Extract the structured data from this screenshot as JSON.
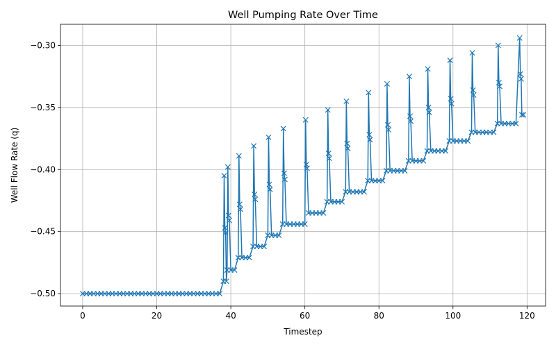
{
  "chart_data": {
    "type": "line",
    "title": "Well Pumping Rate Over Time",
    "xlabel": "Timestep",
    "ylabel": "Well Flow Rate (q)",
    "xlim": [
      -6,
      125
    ],
    "ylim": [
      -0.51,
      -0.283
    ],
    "xticks": [
      0,
      20,
      40,
      60,
      80,
      100,
      120
    ],
    "xtick_labels": [
      "0",
      "20",
      "40",
      "60",
      "80",
      "100",
      "120"
    ],
    "yticks": [
      -0.5,
      -0.45,
      -0.4,
      -0.35,
      -0.3
    ],
    "ytick_labels": [
      "−0.50",
      "−0.45",
      "−0.40",
      "−0.35",
      "−0.30"
    ],
    "grid": true,
    "marker": "x",
    "color": "#1f77b4",
    "series": [
      {
        "x": [
          0,
          1,
          2,
          3,
          4,
          5,
          6,
          7,
          8,
          9,
          10,
          11,
          12,
          13,
          14,
          15,
          16,
          17,
          18,
          19,
          20,
          21,
          22,
          23,
          24,
          25,
          26,
          27,
          28,
          29,
          30,
          31,
          32,
          33,
          34,
          35,
          36,
          37,
          38,
          38.2,
          38.4,
          38.6,
          38.8,
          39,
          39.2,
          39.4,
          39.6,
          40,
          41,
          42,
          42.2,
          42.4,
          42.6,
          43,
          44,
          45,
          46,
          46.2,
          46.4,
          46.6,
          47,
          48,
          49,
          50,
          50.2,
          50.4,
          50.6,
          51,
          52,
          53,
          54,
          54.2,
          54.4,
          54.6,
          55,
          56,
          57,
          58,
          59,
          60,
          60.2,
          60.4,
          60.6,
          61,
          62,
          63,
          64,
          65,
          66,
          66.2,
          66.4,
          66.6,
          67,
          68,
          69,
          70,
          71,
          71.2,
          71.4,
          71.6,
          72,
          73,
          74,
          75,
          76,
          77,
          77.2,
          77.4,
          77.6,
          78,
          79,
          80,
          81,
          82,
          82.2,
          82.4,
          82.6,
          83,
          84,
          85,
          86,
          87,
          88,
          88.2,
          88.4,
          88.6,
          89,
          90,
          91,
          92,
          93,
          93.2,
          93.4,
          93.6,
          94,
          95,
          96,
          97,
          98,
          99,
          99.2,
          99.4,
          99.6,
          100,
          101,
          102,
          103,
          104,
          105,
          105.2,
          105.4,
          105.6,
          106,
          107,
          108,
          109,
          110,
          111,
          112,
          112.2,
          112.4,
          112.6,
          113,
          114,
          115,
          116,
          117,
          118,
          118.2,
          118.4,
          118.6,
          119
        ],
        "y": [
          -0.5,
          -0.5,
          -0.5,
          -0.5,
          -0.5,
          -0.5,
          -0.5,
          -0.5,
          -0.5,
          -0.5,
          -0.5,
          -0.5,
          -0.5,
          -0.5,
          -0.5,
          -0.5,
          -0.5,
          -0.5,
          -0.5,
          -0.5,
          -0.5,
          -0.5,
          -0.5,
          -0.5,
          -0.5,
          -0.5,
          -0.5,
          -0.5,
          -0.5,
          -0.5,
          -0.5,
          -0.5,
          -0.5,
          -0.5,
          -0.5,
          -0.5,
          -0.5,
          -0.5,
          -0.49,
          -0.405,
          -0.447,
          -0.451,
          -0.49,
          -0.481,
          -0.398,
          -0.437,
          -0.441,
          -0.481,
          -0.481,
          -0.471,
          -0.389,
          -0.428,
          -0.432,
          -0.471,
          -0.471,
          -0.471,
          -0.462,
          -0.381,
          -0.42,
          -0.424,
          -0.462,
          -0.462,
          -0.462,
          -0.453,
          -0.374,
          -0.412,
          -0.416,
          -0.453,
          -0.453,
          -0.453,
          -0.444,
          -0.367,
          -0.403,
          -0.408,
          -0.444,
          -0.444,
          -0.444,
          -0.444,
          -0.444,
          -0.444,
          -0.36,
          -0.396,
          -0.399,
          -0.435,
          -0.435,
          -0.435,
          -0.435,
          -0.435,
          -0.426,
          -0.352,
          -0.387,
          -0.391,
          -0.426,
          -0.426,
          -0.426,
          -0.426,
          -0.418,
          -0.345,
          -0.379,
          -0.383,
          -0.418,
          -0.418,
          -0.418,
          -0.418,
          -0.418,
          -0.409,
          -0.338,
          -0.372,
          -0.376,
          -0.409,
          -0.409,
          -0.409,
          -0.409,
          -0.401,
          -0.331,
          -0.364,
          -0.368,
          -0.401,
          -0.401,
          -0.401,
          -0.401,
          -0.401,
          -0.393,
          -0.325,
          -0.357,
          -0.361,
          -0.393,
          -0.393,
          -0.393,
          -0.393,
          -0.385,
          -0.319,
          -0.35,
          -0.354,
          -0.385,
          -0.385,
          -0.385,
          -0.385,
          -0.385,
          -0.377,
          -0.312,
          -0.343,
          -0.347,
          -0.377,
          -0.377,
          -0.377,
          -0.377,
          -0.377,
          -0.37,
          -0.306,
          -0.336,
          -0.34,
          -0.37,
          -0.37,
          -0.37,
          -0.37,
          -0.37,
          -0.37,
          -0.363,
          -0.3,
          -0.33,
          -0.333,
          -0.363,
          -0.363,
          -0.363,
          -0.363,
          -0.363,
          -0.294,
          -0.323,
          -0.327,
          -0.356,
          -0.356
        ]
      }
    ]
  }
}
